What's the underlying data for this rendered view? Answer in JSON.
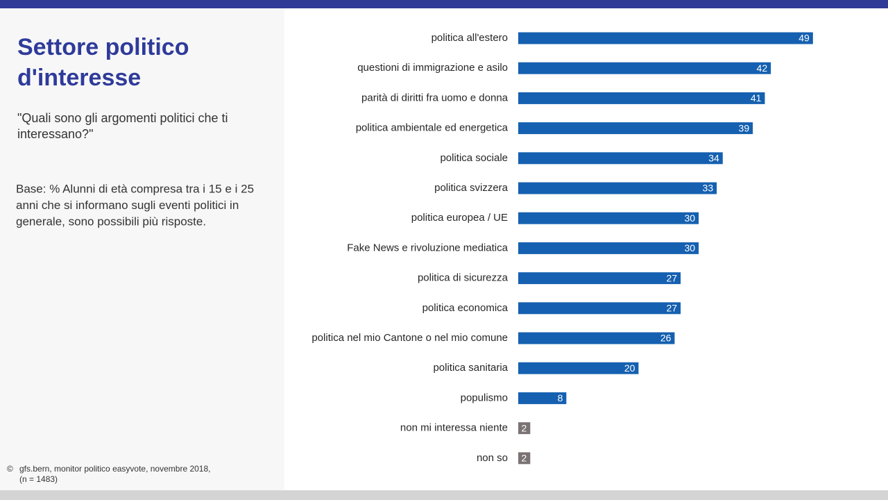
{
  "chart_data": {
    "type": "barh",
    "title": [
      "Settore politico",
      "d'interesse"
    ],
    "subtitle": [
      "\"Quali sono gli argomenti politici che ti",
      "interessano?\""
    ],
    "note": [
      "Base: % Alunni di età compresa tra i 15 e i 25",
      "anni che si informano sugli eventi politici in",
      "generale, sono possibili più risposte."
    ],
    "copyright": "©",
    "source": [
      "gfs.bern, monitor politico easyvote, novembre 2018,",
      "(n = 1483)"
    ],
    "categories": [
      "politica all'estero",
      "questioni di immigrazione e asilo",
      "parità di diritti fra uomo e donna",
      "politica ambientale ed energetica",
      "politica sociale",
      "politica svizzera",
      "politica europea / UE",
      "Fake News e rivoluzione mediatica",
      "politica di sicurezza",
      "politica economica",
      "politica nel mio Cantone o nel mio comune",
      "politica sanitaria",
      "populismo",
      "non mi interessa niente",
      "non so"
    ],
    "values": [
      49,
      42,
      41,
      39,
      34,
      33,
      30,
      30,
      27,
      27,
      26,
      20,
      8,
      2,
      2
    ],
    "colors": [
      "#1560b0",
      "#1560b0",
      "#1560b0",
      "#1560b0",
      "#1560b0",
      "#1560b0",
      "#1560b0",
      "#1560b0",
      "#1560b0",
      "#1560b0",
      "#1560b0",
      "#1560b0",
      "#1560b0",
      "#7b7373",
      "#7b7373"
    ]
  }
}
